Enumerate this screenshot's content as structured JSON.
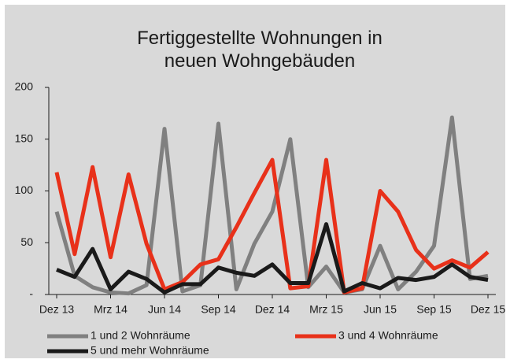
{
  "chart_data": {
    "type": "line",
    "title": "Fertiggestellte Wohnungen in neuen Wohngebäuden",
    "categories": [
      "Dez 13",
      null,
      null,
      "Mrz 14",
      null,
      null,
      "Jun 14",
      null,
      null,
      "Sep 14",
      null,
      null,
      "Dez 14",
      null,
      null,
      "Mrz 15",
      null,
      null,
      "Jun 15",
      null,
      null,
      "Sep 15",
      null,
      null,
      "Dez 15"
    ],
    "series": [
      {
        "name": "1 und 2 Wohnräume",
        "color": "#808080",
        "values": [
          80,
          18,
          7,
          2,
          1,
          9,
          160,
          3,
          9,
          165,
          5,
          49,
          80,
          150,
          7,
          27,
          2,
          5,
          47,
          5,
          22,
          47,
          171,
          15,
          18
        ]
      },
      {
        "name": "3 und 4 Wohnräume",
        "color": "#e8311a",
        "values": [
          118,
          39,
          123,
          36,
          116,
          49,
          5,
          12,
          29,
          34,
          65,
          98,
          130,
          6,
          8,
          130,
          2,
          6,
          100,
          80,
          43,
          25,
          33,
          26,
          41
        ]
      },
      {
        "name": "5 und mehr Wohnräume",
        "color": "#1a1a1a",
        "values": [
          24,
          17,
          44,
          5,
          22,
          15,
          2,
          10,
          10,
          26,
          21,
          18,
          29,
          11,
          11,
          68,
          3,
          11,
          6,
          16,
          14,
          17,
          29,
          17,
          14
        ]
      }
    ],
    "ylim": [
      0,
      200
    ],
    "yticks": [
      {
        "value": 0,
        "label": "-"
      },
      50,
      100,
      150,
      200
    ]
  }
}
